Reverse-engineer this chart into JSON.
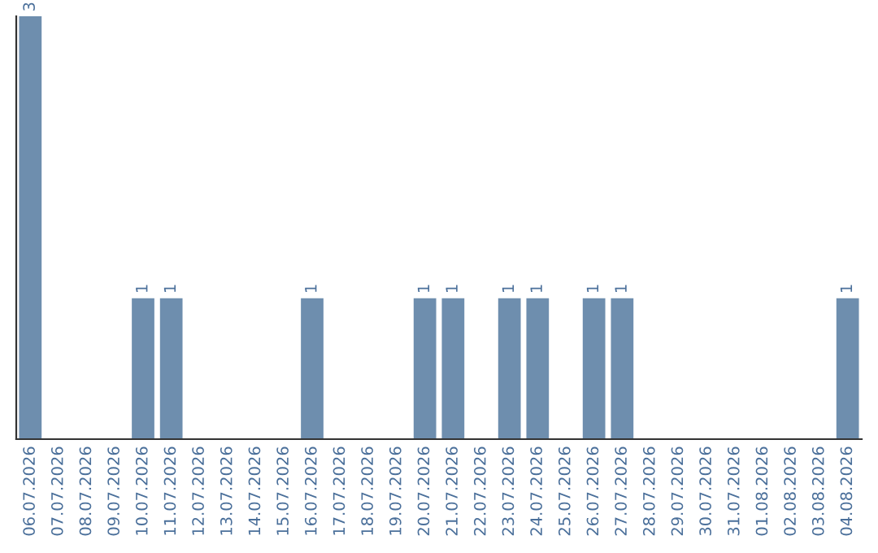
{
  "chart_data": {
    "type": "bar",
    "categories": [
      "06.07.2026",
      "07.07.2026",
      "08.07.2026",
      "09.07.2026",
      "10.07.2026",
      "11.07.2026",
      "12.07.2026",
      "13.07.2026",
      "14.07.2026",
      "15.07.2026",
      "16.07.2026",
      "17.07.2026",
      "18.07.2026",
      "19.07.2026",
      "20.07.2026",
      "21.07.2026",
      "22.07.2026",
      "23.07.2026",
      "24.07.2026",
      "25.07.2026",
      "26.07.2026",
      "27.07.2026",
      "28.07.2026",
      "29.07.2026",
      "30.07.2026",
      "31.07.2026",
      "01.08.2026",
      "02.08.2026",
      "03.08.2026",
      "04.08.2026"
    ],
    "values": [
      3,
      0,
      0,
      0,
      1,
      1,
      0,
      0,
      0,
      0,
      1,
      0,
      0,
      0,
      1,
      1,
      0,
      1,
      1,
      0,
      1,
      1,
      0,
      0,
      0,
      0,
      0,
      0,
      0,
      1
    ],
    "value_labels": [
      "3",
      null,
      null,
      null,
      "1",
      "1",
      null,
      null,
      null,
      null,
      "1",
      null,
      null,
      null,
      "1",
      "1",
      null,
      "1",
      "1",
      null,
      "1",
      "1",
      null,
      null,
      null,
      null,
      null,
      null,
      null,
      "1"
    ],
    "color": "#6e8eae",
    "grid": false,
    "legend": false
  }
}
